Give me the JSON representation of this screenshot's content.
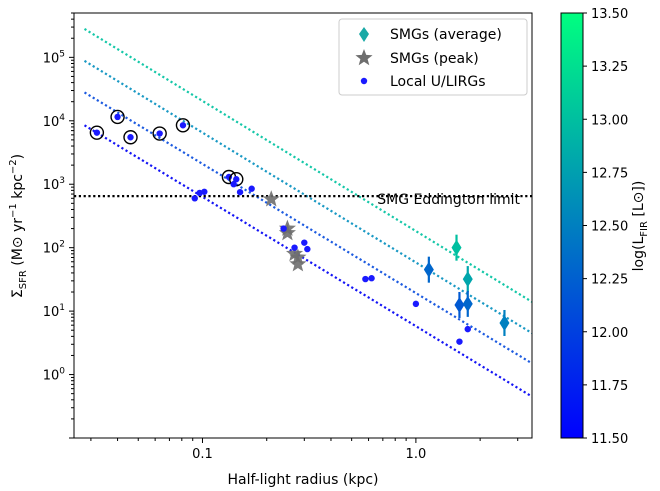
{
  "chart_data": {
    "type": "scatter",
    "title": "",
    "xlabel": "Half-light radius (kpc)",
    "ylabel": "Σ_SFR (M⊙ yr⁻¹ kpc⁻²)",
    "xscale": "log",
    "yscale": "log",
    "xlim": [
      0.025,
      3.5
    ],
    "ylim": [
      0.1,
      500000
    ],
    "x_ticks": [
      {
        "value": 0.1,
        "label": "0.1"
      },
      {
        "value": 1.0,
        "label": "1.0"
      }
    ],
    "y_ticks": [
      {
        "value": 1,
        "label": "10",
        "exp": "0"
      },
      {
        "value": 10,
        "label": "10",
        "exp": "1"
      },
      {
        "value": 100,
        "label": "10",
        "exp": "2"
      },
      {
        "value": 1000,
        "label": "10",
        "exp": "3"
      },
      {
        "value": 10000,
        "label": "10",
        "exp": "4"
      },
      {
        "value": 100000,
        "label": "10",
        "exp": "5"
      }
    ],
    "legend": {
      "position": "top-right",
      "entries": [
        {
          "label": "SMGs (average)",
          "marker": "diamond",
          "color": "#1aa9a6"
        },
        {
          "label": "SMGs (peak)",
          "marker": "star",
          "color": "#6e6e6e"
        },
        {
          "label": "Local U/LIRGs",
          "marker": "circle",
          "color": "#1a1aff"
        }
      ]
    },
    "eddington": {
      "label": "SMG Eddington limit",
      "y": 650
    },
    "lines": [
      {
        "logL": 11.5,
        "color": "#1414f5",
        "points": [
          [
            0.028,
            8500
          ],
          [
            3.5,
            0.45
          ]
        ]
      },
      {
        "logL": 12.0,
        "color": "#1d5be0",
        "points": [
          [
            0.028,
            28000
          ],
          [
            3.5,
            1.5
          ]
        ]
      },
      {
        "logL": 12.5,
        "color": "#1a99c4",
        "points": [
          [
            0.028,
            88000
          ],
          [
            3.5,
            4.5
          ]
        ]
      },
      {
        "logL": 13.0,
        "color": "#15c7a8",
        "points": [
          [
            0.028,
            280000
          ],
          [
            3.5,
            14
          ]
        ]
      }
    ],
    "colorbar": {
      "label": "log(L_FIR [L⊙])",
      "min": 11.5,
      "max": 13.5,
      "ticks": [
        "11.50",
        "11.75",
        "12.00",
        "12.25",
        "12.50",
        "12.75",
        "13.00",
        "13.25",
        "13.50"
      ],
      "color_low": "#0000ff",
      "color_high": "#00ff80"
    },
    "series": [
      {
        "name": "SMGs (average)",
        "marker": "diamond",
        "points": [
          {
            "x": 1.15,
            "y": 45,
            "logL": 12.3
          },
          {
            "x": 1.55,
            "y": 100,
            "logL": 13.0
          },
          {
            "x": 1.6,
            "y": 12.5,
            "logL": 12.2
          },
          {
            "x": 1.75,
            "y": 32,
            "logL": 12.8
          },
          {
            "x": 1.75,
            "y": 13,
            "logL": 12.3
          },
          {
            "x": 2.6,
            "y": 6.5,
            "logL": 12.5
          }
        ]
      },
      {
        "name": "SMGs (peak)",
        "marker": "star",
        "points": [
          {
            "x": 0.21,
            "y": 580
          },
          {
            "x": 0.25,
            "y": 200
          },
          {
            "x": 0.25,
            "y": 170
          },
          {
            "x": 0.27,
            "y": 80
          },
          {
            "x": 0.28,
            "y": 70
          },
          {
            "x": 0.28,
            "y": 55
          }
        ]
      },
      {
        "name": "Local U/LIRGs",
        "marker": "circle",
        "points": [
          {
            "x": 0.032,
            "y": 6500,
            "ring": true
          },
          {
            "x": 0.04,
            "y": 11500,
            "ring": true
          },
          {
            "x": 0.046,
            "y": 5500,
            "ring": true
          },
          {
            "x": 0.063,
            "y": 6300,
            "ring": true
          },
          {
            "x": 0.081,
            "y": 8500,
            "ring": true
          },
          {
            "x": 0.133,
            "y": 1300,
            "ring": true
          },
          {
            "x": 0.144,
            "y": 1200,
            "ring": true
          },
          {
            "x": 0.092,
            "y": 600
          },
          {
            "x": 0.097,
            "y": 730
          },
          {
            "x": 0.102,
            "y": 760
          },
          {
            "x": 0.14,
            "y": 1000
          },
          {
            "x": 0.15,
            "y": 750
          },
          {
            "x": 0.17,
            "y": 850
          },
          {
            "x": 0.24,
            "y": 200
          },
          {
            "x": 0.27,
            "y": 100
          },
          {
            "x": 0.3,
            "y": 120
          },
          {
            "x": 0.31,
            "y": 95
          },
          {
            "x": 0.58,
            "y": 32
          },
          {
            "x": 0.62,
            "y": 33
          },
          {
            "x": 1.0,
            "y": 13
          },
          {
            "x": 1.6,
            "y": 3.3
          },
          {
            "x": 1.75,
            "y": 5.2
          }
        ]
      }
    ]
  }
}
